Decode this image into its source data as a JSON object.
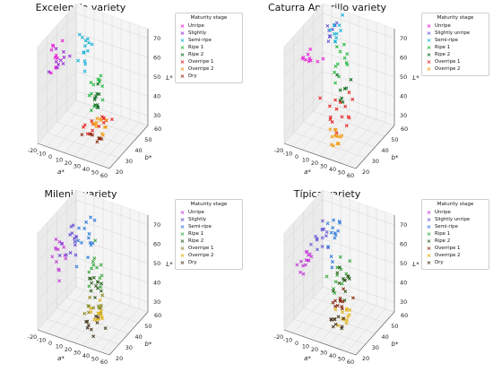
{
  "legend": {
    "title": "Maturity stage",
    "items": [
      {
        "label": "Unripe",
        "color": "#e81fd8"
      },
      {
        "label": "Slightly",
        "color": "#9a2fd6"
      },
      {
        "label": "Semi-ripe",
        "color": "#16b3d9"
      },
      {
        "label": "Ripe 1",
        "color": "#21b83c"
      },
      {
        "label": "Ripe 2",
        "color": "#0e6b1e"
      },
      {
        "label": "Overripe 1",
        "color": "#e82020"
      },
      {
        "label": "Overripe 2",
        "color": "#f29b11"
      },
      {
        "label": "Dry",
        "color": "#8a2a10"
      }
    ]
  },
  "chart_data": [
    {
      "type": "scatter3d",
      "title": "Excelencia variety",
      "xlabel": "a*",
      "ylabel": "b*",
      "zlabel": "L*",
      "xlim": [
        -20,
        60
      ],
      "ylim": [
        20,
        60
      ],
      "zlim": [
        25,
        75
      ],
      "xticks": [
        -20,
        -10,
        0,
        10,
        20,
        30,
        40,
        50,
        60
      ],
      "yticks": [
        20,
        30,
        40,
        50,
        60
      ],
      "zticks": [
        30,
        40,
        50,
        60,
        70
      ],
      "legend_title": "Maturity stage",
      "legend": [
        "Unripe",
        "Slightly",
        "Semi-ripe",
        "Ripe 1",
        "Ripe 2",
        "Overripe 1",
        "Overripe 2",
        "Dry"
      ],
      "series": [
        {
          "name": "Unripe",
          "color": "#e81fd8",
          "center": [
            -10,
            30,
            63
          ],
          "spread": [
            3,
            3,
            4
          ],
          "n": 10
        },
        {
          "name": "Slightly",
          "color": "#9a2fd6",
          "center": [
            -8,
            32,
            64
          ],
          "spread": [
            3,
            3,
            4
          ],
          "n": 10
        },
        {
          "name": "Semi-ripe",
          "color": "#16b3d9",
          "center": [
            0,
            50,
            60
          ],
          "spread": [
            3,
            4,
            6
          ],
          "n": 14
        },
        {
          "name": "Ripe 1",
          "color": "#21b83c",
          "center": [
            15,
            48,
            42
          ],
          "spread": [
            3,
            3,
            5
          ],
          "n": 12
        },
        {
          "name": "Ripe 2",
          "color": "#0e6b1e",
          "center": [
            18,
            46,
            38
          ],
          "spread": [
            3,
            3,
            4
          ],
          "n": 10
        },
        {
          "name": "Overripe 1",
          "color": "#e82020",
          "center": [
            25,
            40,
            32
          ],
          "spread": [
            6,
            4,
            2
          ],
          "n": 14
        },
        {
          "name": "Overripe 2",
          "color": "#f29b11",
          "center": [
            28,
            38,
            32
          ],
          "spread": [
            5,
            3,
            2
          ],
          "n": 12
        },
        {
          "name": "Dry",
          "color": "#8a2a10",
          "center": [
            30,
            30,
            30
          ],
          "spread": [
            5,
            3,
            2
          ],
          "n": 8
        }
      ]
    },
    {
      "type": "scatter3d",
      "title": "Caturra Amarillo variety",
      "xlabel": "a*",
      "ylabel": "b*",
      "zlabel": "L*",
      "xlim": [
        -20,
        60
      ],
      "ylim": [
        20,
        60
      ],
      "zlim": [
        25,
        75
      ],
      "xticks": [
        -20,
        -10,
        0,
        10,
        20,
        30,
        40,
        50,
        60
      ],
      "yticks": [
        20,
        30,
        40,
        50,
        60
      ],
      "zticks": [
        30,
        40,
        50,
        60,
        70
      ],
      "legend_title": "Maturity stage",
      "legend": [
        "Unripe",
        "Slightly unripe",
        "Semi-ripe",
        "Ripe 1",
        "Ripe 2",
        "Overripe 1",
        "Overripe 2"
      ],
      "series": [
        {
          "name": "Unripe",
          "color": "#e81fd8",
          "center": [
            -10,
            38,
            60
          ],
          "spread": [
            3,
            3,
            4
          ],
          "n": 10
        },
        {
          "name": "Slightly unripe",
          "color": "#6a5fd6",
          "center": [
            -2,
            52,
            70
          ],
          "spread": [
            2,
            3,
            3
          ],
          "n": 10
        },
        {
          "name": "Semi-ripe",
          "color": "#16b3d9",
          "center": [
            2,
            54,
            68
          ],
          "spread": [
            2,
            3,
            4
          ],
          "n": 10
        },
        {
          "name": "Ripe 1",
          "color": "#21b83c",
          "center": [
            8,
            52,
            52
          ],
          "spread": [
            3,
            4,
            6
          ],
          "n": 12
        },
        {
          "name": "Ripe 2",
          "color": "#0e6b1e",
          "center": [
            14,
            50,
            40
          ],
          "spread": [
            3,
            3,
            4
          ],
          "n": 8
        },
        {
          "name": "Overripe 1",
          "color": "#e82020",
          "center": [
            18,
            40,
            38
          ],
          "spread": [
            6,
            6,
            5
          ],
          "n": 16
        },
        {
          "name": "Overripe 2",
          "color": "#f29b11",
          "center": [
            28,
            30,
            30
          ],
          "spread": [
            4,
            3,
            2
          ],
          "n": 14
        }
      ]
    },
    {
      "type": "scatter3d",
      "title": "Milenio variety",
      "xlabel": "a*",
      "ylabel": "b*",
      "zlabel": "L*",
      "xlim": [
        -20,
        60
      ],
      "ylim": [
        20,
        60
      ],
      "zlim": [
        25,
        75
      ],
      "xticks": [
        -20,
        -10,
        0,
        10,
        20,
        30,
        40,
        50,
        60
      ],
      "yticks": [
        20,
        30,
        40,
        50,
        60
      ],
      "zticks": [
        30,
        40,
        50,
        60,
        70
      ],
      "legend_title": "Maturity stage",
      "legend": [
        "Unripe",
        "Slightly",
        "Semi-ripe",
        "Ripe 1",
        "Ripe 2",
        "Overripe 1",
        "Overripe 2",
        "Dry"
      ],
      "series": [
        {
          "name": "Unripe",
          "color": "#c43ed8",
          "center": [
            -12,
            34,
            58
          ],
          "spread": [
            3,
            4,
            6
          ],
          "n": 14
        },
        {
          "name": "Slightly",
          "color": "#6a4fd6",
          "center": [
            -6,
            40,
            62
          ],
          "spread": [
            4,
            4,
            5
          ],
          "n": 14
        },
        {
          "name": "Semi-ripe",
          "color": "#2f7ad9",
          "center": [
            4,
            48,
            62
          ],
          "spread": [
            4,
            4,
            5
          ],
          "n": 14
        },
        {
          "name": "Ripe 1",
          "color": "#3aa83c",
          "center": [
            14,
            46,
            48
          ],
          "spread": [
            4,
            3,
            6
          ],
          "n": 12
        },
        {
          "name": "Ripe 2",
          "color": "#2f5e1e",
          "center": [
            18,
            44,
            42
          ],
          "spread": [
            3,
            3,
            4
          ],
          "n": 12
        },
        {
          "name": "Overripe 1",
          "color": "#8a8a20",
          "center": [
            24,
            38,
            34
          ],
          "spread": [
            5,
            4,
            2
          ],
          "n": 12
        },
        {
          "name": "Overripe 2",
          "color": "#e0b010",
          "center": [
            28,
            36,
            33
          ],
          "spread": [
            5,
            3,
            2
          ],
          "n": 12
        },
        {
          "name": "Dry",
          "color": "#4a3a20",
          "center": [
            30,
            30,
            30
          ],
          "spread": [
            5,
            3,
            2
          ],
          "n": 10
        }
      ]
    },
    {
      "type": "scatter3d",
      "title": "Típica variety",
      "xlabel": "a*",
      "ylabel": "b*",
      "zlabel": "L*",
      "xlim": [
        -20,
        60
      ],
      "ylim": [
        20,
        60
      ],
      "zlim": [
        25,
        75
      ],
      "xticks": [
        -20,
        -10,
        0,
        10,
        20,
        30,
        40,
        50,
        60
      ],
      "yticks": [
        20,
        30,
        40,
        50,
        60
      ],
      "zticks": [
        30,
        40,
        50,
        60,
        70
      ],
      "legend_title": "Maturity stage",
      "legend": [
        "Unripe",
        "Slightly unripe",
        "Semi-ripe",
        "Ripe 1",
        "Ripe 2",
        "Overripe 1",
        "Overripe 2",
        "Dry"
      ],
      "series": [
        {
          "name": "Unripe",
          "color": "#c43ed8",
          "center": [
            -12,
            34,
            54
          ],
          "spread": [
            2,
            3,
            3
          ],
          "n": 14
        },
        {
          "name": "Slightly unripe",
          "color": "#6a5fd6",
          "center": [
            -4,
            44,
            64
          ],
          "spread": [
            3,
            4,
            5
          ],
          "n": 14
        },
        {
          "name": "Semi-ripe",
          "color": "#2f7ad9",
          "center": [
            4,
            50,
            60
          ],
          "spread": [
            3,
            4,
            6
          ],
          "n": 14
        },
        {
          "name": "Ripe 1",
          "color": "#3aa83c",
          "center": [
            12,
            44,
            44
          ],
          "spread": [
            4,
            4,
            6
          ],
          "n": 12
        },
        {
          "name": "Ripe 2",
          "color": "#2f5e1e",
          "center": [
            16,
            46,
            40
          ],
          "spread": [
            3,
            3,
            5
          ],
          "n": 12
        },
        {
          "name": "Overripe 1",
          "color": "#8a2a10",
          "center": [
            22,
            40,
            36
          ],
          "spread": [
            4,
            4,
            4
          ],
          "n": 12
        },
        {
          "name": "Overripe 2",
          "color": "#e0b010",
          "center": [
            28,
            36,
            32
          ],
          "spread": [
            4,
            3,
            3
          ],
          "n": 12
        },
        {
          "name": "Dry",
          "color": "#4a3a20",
          "center": [
            26,
            32,
            30
          ],
          "spread": [
            5,
            3,
            2
          ],
          "n": 10
        }
      ]
    }
  ]
}
